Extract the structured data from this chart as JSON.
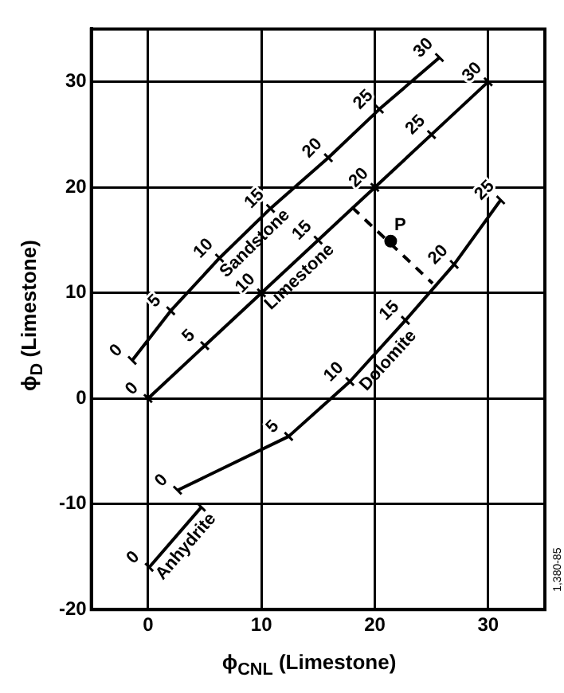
{
  "chart_data": {
    "type": "line",
    "xlabel": "ϕ$_{CNL}$ (Limestone)",
    "ylabel": "ϕ$_{D}$ (Limestone)",
    "xlim": [
      -5,
      35
    ],
    "ylim": [
      -20,
      35
    ],
    "xticks": [
      0,
      10,
      20,
      30
    ],
    "yticks": [
      -20,
      -10,
      0,
      10,
      20,
      30
    ],
    "grid": true,
    "legend": false,
    "marker": "cross",
    "line_style": "solid",
    "series": [
      {
        "name": "Sandstone",
        "color": "#000000",
        "x": [
          -1.4,
          2.0,
          6.3,
          10.8,
          15.9,
          20.4,
          25.7
        ],
        "values": [
          3.6,
          8.3,
          13.3,
          18.0,
          22.8,
          27.4,
          32.3
        ]
      },
      {
        "name": "Limestone",
        "color": "#000000",
        "x": [
          0,
          5,
          10,
          15,
          20,
          25,
          30
        ],
        "values": [
          0,
          5,
          10,
          15,
          20,
          25,
          30
        ]
      },
      {
        "name": "Dolomite",
        "color": "#000000",
        "x": [
          2.6,
          12.4,
          17.8,
          22.7,
          27.0,
          31.1
        ],
        "values": [
          -8.7,
          -3.6,
          1.6,
          7.4,
          12.7,
          18.8
        ]
      },
      {
        "name": "Anhydrite",
        "color": "#000000",
        "x": [
          0.1,
          4.7
        ],
        "values": [
          -16.0,
          -10.3
        ]
      },
      {
        "color": "#000000",
        "line_style": "dashed",
        "marker": "none",
        "x": [
          18.0,
          25.1
        ],
        "values": [
          18.1,
          10.9
        ]
      },
      {
        "name": "P",
        "type": "scatter",
        "marker": "circle",
        "color": "#000000",
        "x": [
          21.4
        ],
        "values": [
          14.9
        ]
      }
    ],
    "annotations": [
      {
        "text": "0",
        "x": -1.4,
        "y": 3.6
      },
      {
        "text": "5",
        "x": 2.0,
        "y": 8.3
      },
      {
        "text": "10",
        "x": 6.3,
        "y": 13.3
      },
      {
        "text": "15",
        "x": 10.8,
        "y": 18.0
      },
      {
        "text": "20",
        "x": 15.9,
        "y": 22.8
      },
      {
        "text": "25",
        "x": 20.4,
        "y": 27.4
      },
      {
        "text": "30",
        "x": 25.7,
        "y": 32.3
      },
      {
        "text": "0",
        "x": 0,
        "y": 0
      },
      {
        "text": "5",
        "x": 5,
        "y": 5
      },
      {
        "text": "10",
        "x": 10,
        "y": 10
      },
      {
        "text": "15",
        "x": 15,
        "y": 15
      },
      {
        "text": "20",
        "x": 20,
        "y": 20
      },
      {
        "text": "25",
        "x": 25,
        "y": 25
      },
      {
        "text": "30",
        "x": 30,
        "y": 30
      },
      {
        "text": "0",
        "x": 2.6,
        "y": -8.7
      },
      {
        "text": "5",
        "x": 12.4,
        "y": -3.6
      },
      {
        "text": "10",
        "x": 17.8,
        "y": 1.6
      },
      {
        "text": "15",
        "x": 22.7,
        "y": 7.4
      },
      {
        "text": "20",
        "x": 27.0,
        "y": 12.7
      },
      {
        "text": "25",
        "x": 31.1,
        "y": 18.8
      },
      {
        "text": "0",
        "x": 0.1,
        "y": -16.0
      },
      "1,380-85"
    ]
  }
}
